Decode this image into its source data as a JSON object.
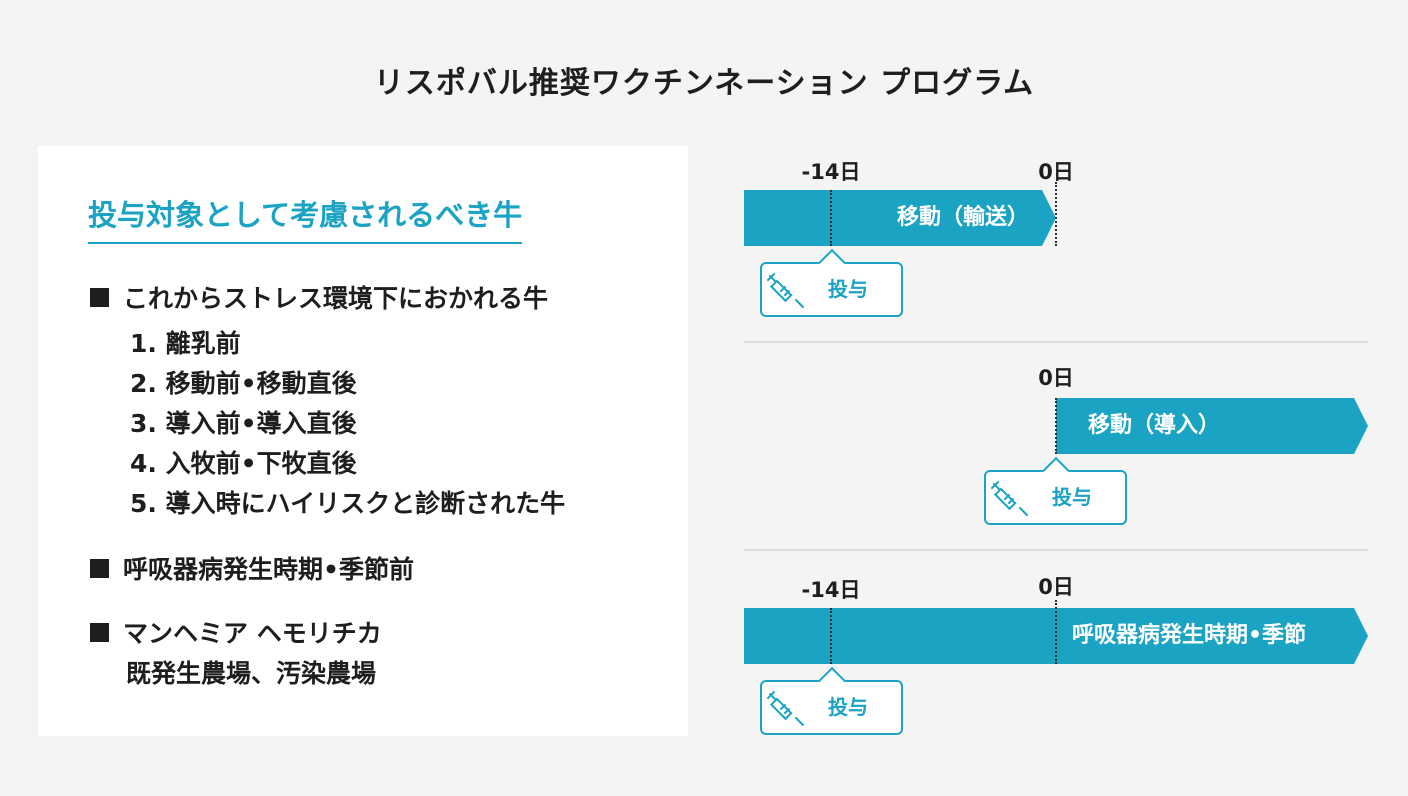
{
  "title": "リスポバル推奨ワクチンネーション プログラム",
  "panel": {
    "heading": "投与対象として考慮されるべき牛",
    "section1": {
      "title": "これからストレス環境下におかれる牛",
      "items": [
        "1. 離乳前",
        "2. 移動前•移動直後",
        "3. 導入前•導入直後",
        "4. 入牧前•下牧直後",
        "5. 導入時にハイリスクと診断された牛"
      ]
    },
    "section2": {
      "title": "呼吸器病発生時期•季節前"
    },
    "section3": {
      "title": "マンヘミア ヘモリチカ",
      "subtitle": "既発生農場、汚染農場"
    }
  },
  "timelines": [
    {
      "day_labels": [
        "-14日",
        "0日"
      ],
      "bar_label": "移動（輸送）",
      "callout_label": "投与",
      "callout_icon": "syringe-icon"
    },
    {
      "day_labels": [
        "0日"
      ],
      "bar_label": "移動（導入）",
      "callout_label": "投与",
      "callout_icon": "syringe-icon"
    },
    {
      "day_labels": [
        "-14日",
        "0日"
      ],
      "bar_label": "呼吸器病発生時期•季節",
      "callout_label": "投与",
      "callout_icon": "syringe-icon"
    }
  ],
  "colors": {
    "accent": "#1ba3c3",
    "text": "#1e1e1e",
    "background": "#f4f4f4",
    "panel": "#ffffff"
  }
}
